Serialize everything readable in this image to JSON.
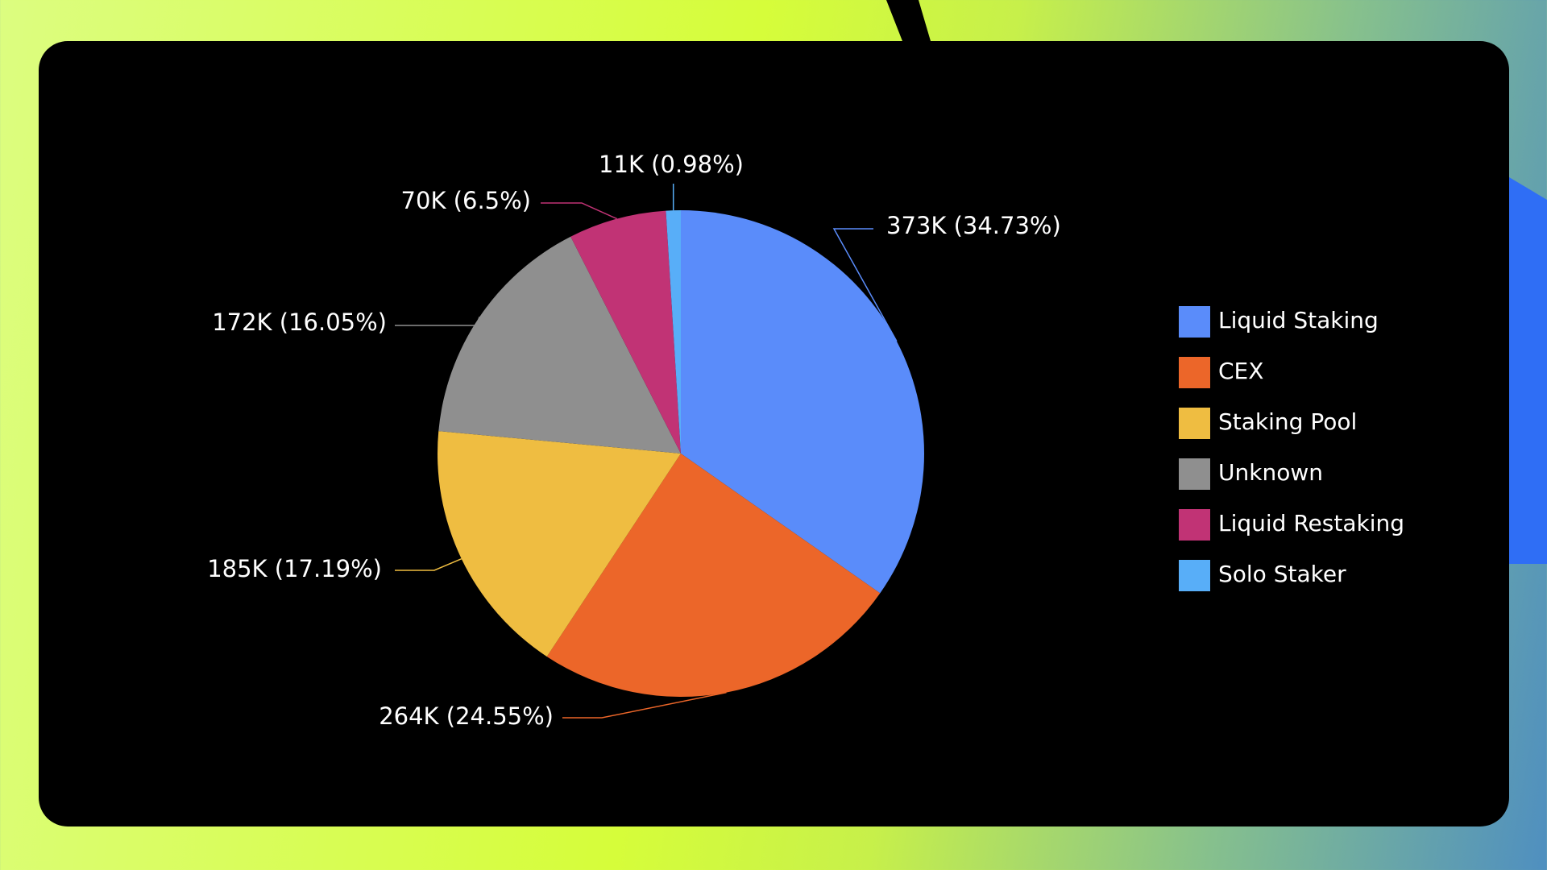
{
  "chart_data": {
    "type": "pie",
    "categories": [
      "Liquid Staking",
      "CEX",
      "Staking Pool",
      "Unknown",
      "Liquid Restaking",
      "Solo Staker"
    ],
    "values": [
      34.73,
      24.55,
      17.19,
      16.05,
      6.5,
      0.98
    ],
    "value_labels": [
      "373K (34.73%)",
      "264K (24.55%)",
      "185K (17.19%)",
      "172K (16.05%)",
      "70K (6.5%)",
      "11K (0.98%)"
    ],
    "colors": [
      "#5a8cfa",
      "#ec6629",
      "#efbd41",
      "#8f8f8f",
      "#c13375",
      "#58aef8"
    ],
    "legend": "right"
  }
}
